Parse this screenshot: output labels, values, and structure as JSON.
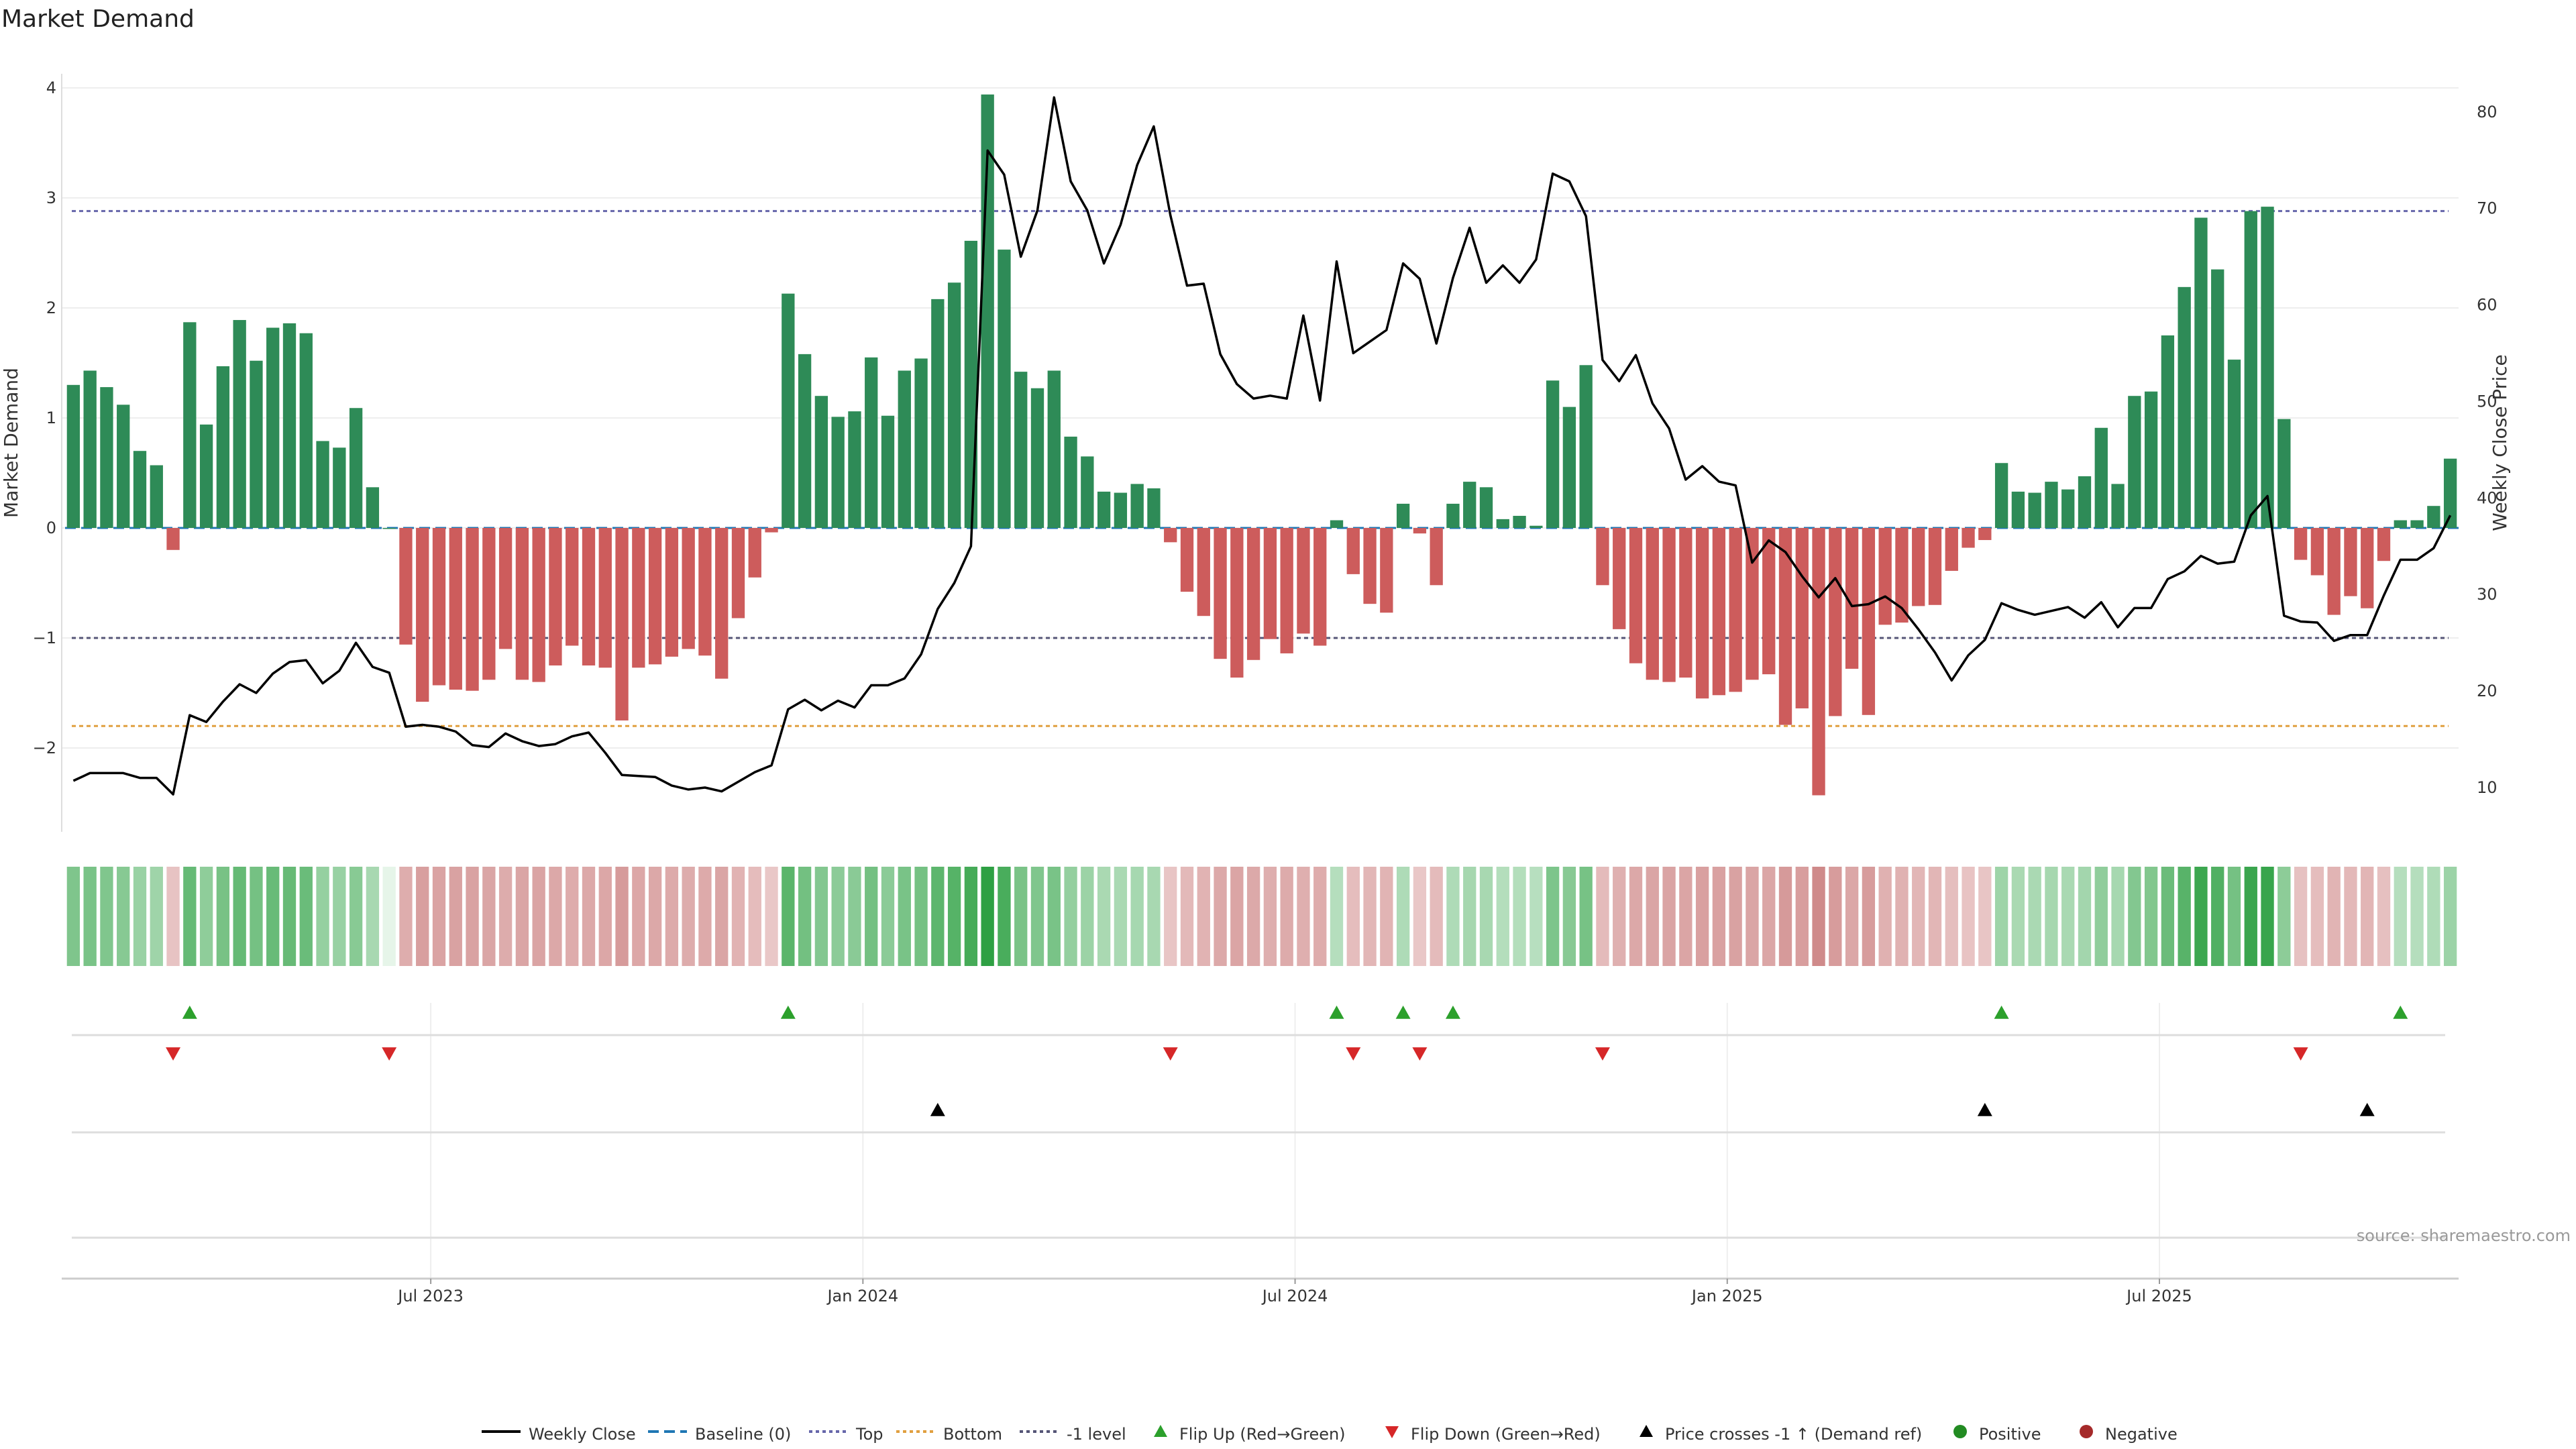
{
  "chart_data": {
    "type": "bar",
    "title": "Market Demand",
    "ylabel_left": "Market Demand",
    "ylabel_right": "Weekly Close Price",
    "source": "source: sharemaestro.com",
    "ylim_left": [
      -2.75,
      4.1
    ],
    "ylim_right": [
      4.5,
      86.5
    ],
    "yticks_left": [
      "4",
      "3",
      "2",
      "1",
      "0",
      "−1",
      "−2"
    ],
    "yticks_right": [
      "80",
      "70",
      "60",
      "50",
      "40",
      "30",
      "20",
      "10"
    ],
    "x_tick_labels": [
      "Jul 2023",
      "Jan 2024",
      "Jul 2024",
      "Jan 2025",
      "Jul 2025"
    ],
    "x_tick_weeks": [
      21.5,
      47.5,
      73.5,
      99.5,
      125.5
    ],
    "levels": {
      "baseline": 0,
      "top": 2.88,
      "bottom": -1.8,
      "minus_one": -1
    },
    "colors": {
      "positive": "#2e8b57",
      "negative": "#cd5c5c",
      "price": "#000000",
      "flip_up": "#2ca02c",
      "flip_down": "#d62728",
      "cross": "#000000",
      "top": "#6666aa",
      "bottom": "#e0a040",
      "minus_one": "#555577",
      "baseline": "#1f77b4"
    },
    "demand": [
      1.3,
      1.43,
      1.28,
      1.12,
      0.7,
      0.57,
      -0.2,
      1.87,
      0.94,
      1.47,
      1.89,
      1.52,
      1.82,
      1.86,
      1.77,
      0.79,
      0.73,
      1.09,
      0.37,
      0,
      -1.06,
      -1.58,
      -1.43,
      -1.47,
      -1.48,
      -1.38,
      -1.1,
      -1.38,
      -1.4,
      -1.25,
      -1.07,
      -1.25,
      -1.27,
      -1.75,
      -1.27,
      -1.24,
      -1.17,
      -1.1,
      -1.16,
      -1.37,
      -0.82,
      -0.45,
      -0.04,
      2.13,
      1.58,
      1.2,
      1.01,
      1.06,
      1.55,
      1.02,
      1.43,
      1.54,
      2.08,
      2.23,
      2.61,
      3.94,
      2.53,
      1.42,
      1.27,
      1.43,
      0.83,
      0.65,
      0.33,
      0.32,
      0.4,
      0.36,
      -0.13,
      -0.58,
      -0.8,
      -1.19,
      -1.36,
      -1.2,
      -1.01,
      -1.14,
      -0.96,
      -1.07,
      0.07,
      -0.42,
      -0.69,
      -0.77,
      0.22,
      -0.05,
      -0.52,
      0.22,
      0.42,
      0.37,
      0.08,
      0.11,
      0.02,
      1.34,
      1.1,
      1.48,
      -0.52,
      -0.92,
      -1.23,
      -1.38,
      -1.4,
      -1.36,
      -1.55,
      -1.52,
      -1.49,
      -1.38,
      -1.33,
      -1.79,
      -1.64,
      -2.43,
      -1.71,
      -1.28,
      -1.7,
      -0.88,
      -0.86,
      -0.71,
      -0.7,
      -0.39,
      -0.18,
      -0.11,
      0.59,
      0.33,
      0.32,
      0.42,
      0.35,
      0.47,
      0.91,
      0.4,
      1.2,
      1.24,
      1.75,
      2.19,
      2.82,
      2.35,
      1.53,
      2.88,
      2.92,
      0.99,
      -0.29,
      -0.43,
      -0.79,
      -0.62,
      -0.73,
      -0.3,
      0.07,
      0.07,
      0.2,
      0.63
    ],
    "price": [
      10.7,
      11.5,
      11.5,
      11.5,
      11,
      11,
      9.3,
      17.5,
      16.8,
      18.9,
      20.7,
      19.8,
      21.8,
      23,
      23.2,
      20.8,
      22.1,
      25,
      22.5,
      21.9,
      16.3,
      16.5,
      16.3,
      15.8,
      14.4,
      14.2,
      15.6,
      14.8,
      14.3,
      14.5,
      15.3,
      15.7,
      13.6,
      11.3,
      11.2,
      11.1,
      10.2,
      9.8,
      10,
      9.6,
      10.6,
      11.6,
      12.3,
      18.1,
      19.1,
      18,
      19,
      18.3,
      20.6,
      20.6,
      21.3,
      23.8,
      28.5,
      31.2,
      35,
      76,
      73.5,
      65,
      69.8,
      81.5,
      72.8,
      69.8,
      64.3,
      68.3,
      74.5,
      78.5,
      69.3,
      62,
      62.2,
      54.9,
      51.8,
      50.3,
      50.6,
      50.3,
      58.9,
      50.1,
      64.5,
      55,
      56.2,
      57.4,
      64.3,
      62.7,
      56,
      62.8,
      68,
      62.3,
      64.1,
      62.3,
      64.7,
      73.6,
      72.8,
      69.2,
      54.3,
      52.1,
      54.8,
      49.8,
      47.2,
      41.9,
      43.3,
      41.7,
      41.3,
      33.3,
      35.6,
      34.4,
      31.9,
      29.7,
      31.7,
      28.8,
      29,
      29.8,
      28.6,
      26.4,
      24,
      21.1,
      23.7,
      25.3,
      29.1,
      28.4,
      27.9,
      28.3,
      28.7,
      27.6,
      29.2,
      26.6,
      28.6,
      28.6,
      31.6,
      32.4,
      34,
      33.2,
      33.4,
      38.2,
      40.2,
      27.8,
      27.2,
      27.1,
      25.2,
      25.8,
      25.8,
      29.9,
      33.6,
      33.6,
      34.8,
      38.2
    ],
    "flip_up_weeks": [
      7,
      43,
      76,
      80,
      83,
      116,
      140
    ],
    "flip_down_weeks": [
      6,
      19,
      66,
      77,
      81,
      92,
      134
    ],
    "price_cross_weeks": [
      52,
      115,
      138
    ],
    "legend": [
      "Weekly Close",
      "Baseline (0)",
      "Top",
      "Bottom",
      "-1 level",
      "Flip Up (Red→Green)",
      "Flip Down (Green→Red)",
      "Price crosses -1 ↑ (Demand ref)",
      "Positive",
      "Negative"
    ]
  }
}
